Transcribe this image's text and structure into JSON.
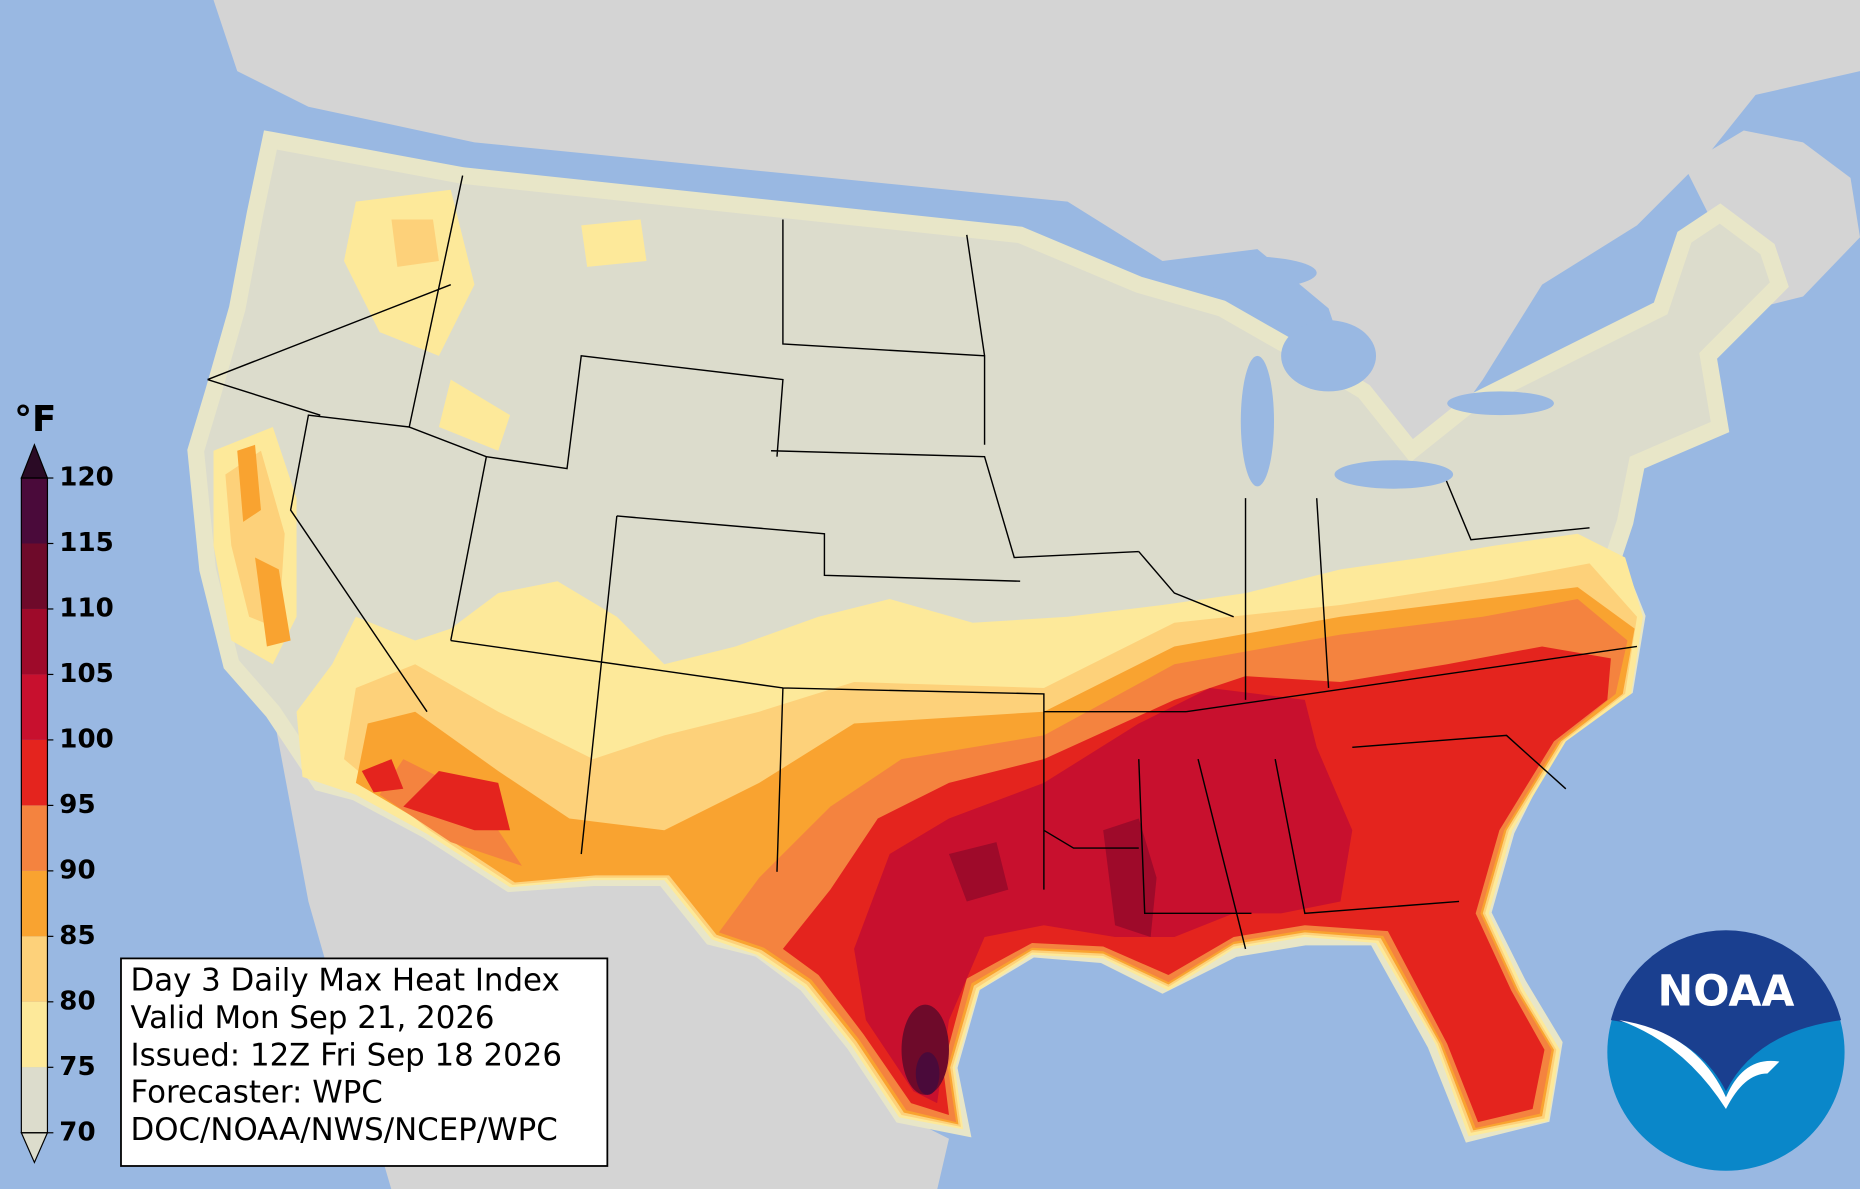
{
  "legend": {
    "unit": "°F",
    "ticks": [
      70,
      75,
      80,
      85,
      90,
      95,
      100,
      105,
      110,
      115,
      120
    ],
    "bands": [
      "#dcdccc",
      "#fde99a",
      "#fdd17a",
      "#f9a330",
      "#f4833f",
      "#e4241e",
      "#c8102e",
      "#9e0a2a",
      "#6e0a2a",
      "#4a0a3a"
    ],
    "under_color": "#dcdccc",
    "over_color": "#2a0a25"
  },
  "info_box": {
    "lines": [
      "Day 3 Daily Max Heat Index",
      "Valid Mon Sep 21, 2026",
      "Issued: 12Z Fri Sep 18 2026",
      "Forecaster: WPC",
      "DOC/NOAA/NWS/NCEP/WPC"
    ]
  },
  "logo": {
    "text": "NOAA"
  }
}
